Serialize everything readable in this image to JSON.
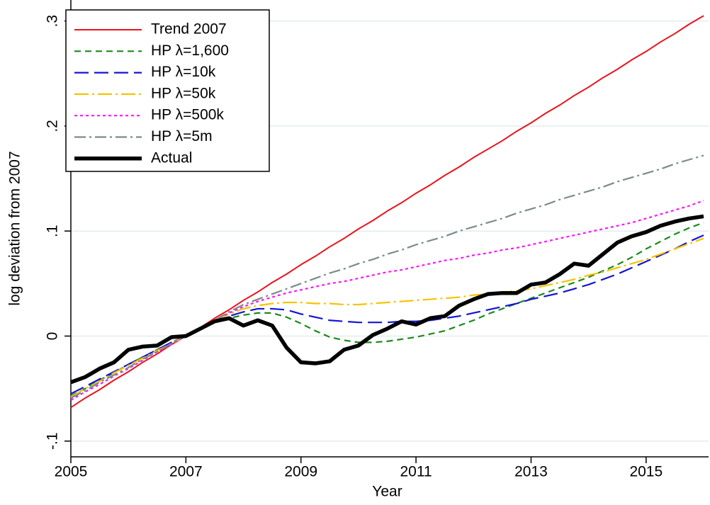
{
  "chart_data": {
    "type": "line",
    "xlabel": "Year",
    "ylabel": "log deviation from 2007",
    "x": [
      2005,
      2005.25,
      2005.5,
      2005.75,
      2006,
      2006.25,
      2006.5,
      2006.75,
      2007,
      2007.25,
      2007.5,
      2007.75,
      2008,
      2008.25,
      2008.5,
      2008.75,
      2009,
      2009.25,
      2009.5,
      2009.75,
      2010,
      2010.25,
      2010.5,
      2010.75,
      2011,
      2011.25,
      2011.5,
      2011.75,
      2012,
      2012.25,
      2012.5,
      2012.75,
      2013,
      2013.25,
      2013.5,
      2013.75,
      2014,
      2014.25,
      2014.5,
      2014.75,
      2015,
      2015.25,
      2015.5,
      2015.75,
      2016
    ],
    "xlim": [
      2005,
      2016
    ],
    "xticks": [
      2005,
      2007,
      2009,
      2011,
      2013,
      2015
    ],
    "ylim": [
      -0.115,
      0.32
    ],
    "yticks": [
      {
        "value": -0.1,
        "label": "-.1"
      },
      0,
      {
        "value": 0.1,
        "label": ".1"
      },
      {
        "value": 0.2,
        "label": ".2"
      },
      {
        "value": 0.3,
        "label": ".3"
      }
    ],
    "grid": true,
    "legend": "top-left",
    "series": [
      {
        "name": "Trend 2007",
        "color": "#e8141c",
        "dash": "none",
        "width": 2,
        "values": [
          -0.068,
          -0.059,
          -0.051,
          -0.042,
          -0.034,
          -0.025,
          -0.017,
          -0.008,
          0,
          0.008,
          0.017,
          0.025,
          0.034,
          0.042,
          0.051,
          0.059,
          0.068,
          0.076,
          0.085,
          0.093,
          0.102,
          0.11,
          0.119,
          0.127,
          0.136,
          0.144,
          0.153,
          0.161,
          0.17,
          0.178,
          0.186,
          0.195,
          0.203,
          0.212,
          0.22,
          0.229,
          0.237,
          0.246,
          0.254,
          0.263,
          0.271,
          0.28,
          0.288,
          0.297,
          0.305
        ]
      },
      {
        "name": "HP λ=1,600",
        "color": "#1a8a1a",
        "dash": "9,6",
        "width": 2.2,
        "values": [
          -0.057,
          -0.05,
          -0.042,
          -0.035,
          -0.027,
          -0.02,
          -0.013,
          -0.006,
          0,
          0.007,
          0.013,
          0.017,
          0.02,
          0.022,
          0.022,
          0.018,
          0.012,
          0.005,
          -0.001,
          -0.004,
          -0.006,
          -0.006,
          -0.005,
          -0.003,
          -0.001,
          0.002,
          0.005,
          0.01,
          0.015,
          0.021,
          0.026,
          0.031,
          0.036,
          0.041,
          0.046,
          0.051,
          0.056,
          0.062,
          0.068,
          0.075,
          0.083,
          0.09,
          0.097,
          0.103,
          0.108
        ]
      },
      {
        "name": "HP λ=10k",
        "color": "#1414d4",
        "dash": "20,8",
        "width": 2.2,
        "values": [
          -0.055,
          -0.048,
          -0.041,
          -0.034,
          -0.027,
          -0.02,
          -0.013,
          -0.006,
          0,
          0.007,
          0.013,
          0.019,
          0.023,
          0.026,
          0.026,
          0.025,
          0.021,
          0.018,
          0.015,
          0.014,
          0.013,
          0.013,
          0.013,
          0.014,
          0.014,
          0.015,
          0.017,
          0.019,
          0.022,
          0.025,
          0.028,
          0.031,
          0.035,
          0.038,
          0.041,
          0.045,
          0.049,
          0.054,
          0.059,
          0.065,
          0.071,
          0.077,
          0.083,
          0.09,
          0.096
        ]
      },
      {
        "name": "HP λ=50k",
        "color": "#f5c400",
        "dash": "20,5,3,5",
        "width": 2.2,
        "values": [
          -0.058,
          -0.05,
          -0.043,
          -0.035,
          -0.028,
          -0.021,
          -0.014,
          -0.007,
          0,
          0.008,
          0.015,
          0.021,
          0.026,
          0.029,
          0.031,
          0.032,
          0.032,
          0.031,
          0.031,
          0.03,
          0.03,
          0.031,
          0.032,
          0.033,
          0.034,
          0.035,
          0.036,
          0.037,
          0.039,
          0.04,
          0.042,
          0.043,
          0.045,
          0.048,
          0.051,
          0.054,
          0.058,
          0.061,
          0.065,
          0.069,
          0.073,
          0.078,
          0.083,
          0.088,
          0.093
        ]
      },
      {
        "name": "HP λ=500k",
        "color": "#ff14ff",
        "dash": "4,4",
        "width": 2.2,
        "values": [
          -0.061,
          -0.053,
          -0.046,
          -0.038,
          -0.031,
          -0.023,
          -0.015,
          -0.008,
          0,
          0.008,
          0.015,
          0.022,
          0.028,
          0.033,
          0.037,
          0.041,
          0.044,
          0.047,
          0.05,
          0.052,
          0.055,
          0.058,
          0.061,
          0.063,
          0.066,
          0.069,
          0.072,
          0.074,
          0.077,
          0.079,
          0.082,
          0.084,
          0.087,
          0.09,
          0.093,
          0.096,
          0.099,
          0.102,
          0.105,
          0.108,
          0.112,
          0.116,
          0.12,
          0.124,
          0.129
        ]
      },
      {
        "name": "HP λ=5m",
        "color": "#7a8c8a",
        "dash": "16,5,3,5",
        "width": 2.2,
        "values": [
          -0.059,
          -0.052,
          -0.044,
          -0.037,
          -0.03,
          -0.022,
          -0.015,
          -0.007,
          0,
          0.008,
          0.015,
          0.023,
          0.03,
          0.035,
          0.04,
          0.045,
          0.05,
          0.055,
          0.06,
          0.064,
          0.069,
          0.073,
          0.078,
          0.082,
          0.087,
          0.091,
          0.095,
          0.1,
          0.104,
          0.108,
          0.112,
          0.117,
          0.121,
          0.125,
          0.13,
          0.134,
          0.138,
          0.142,
          0.147,
          0.151,
          0.155,
          0.159,
          0.164,
          0.168,
          0.172
        ]
      },
      {
        "name": "Actual",
        "color": "#000000",
        "dash": "none",
        "width": 5.5,
        "values": [
          -0.044,
          -0.039,
          -0.031,
          -0.025,
          -0.013,
          -0.01,
          -0.009,
          -0.001,
          0,
          0.007,
          0.014,
          0.017,
          0.01,
          0.015,
          0.01,
          -0.011,
          -0.025,
          -0.026,
          -0.024,
          -0.013,
          -0.009,
          0.001,
          0.007,
          0.014,
          0.011,
          0.017,
          0.019,
          0.029,
          0.035,
          0.04,
          0.041,
          0.041,
          0.049,
          0.051,
          0.059,
          0.069,
          0.067,
          0.078,
          0.089,
          0.095,
          0.099,
          0.105,
          0.109,
          0.112,
          0.114
        ]
      }
    ]
  }
}
